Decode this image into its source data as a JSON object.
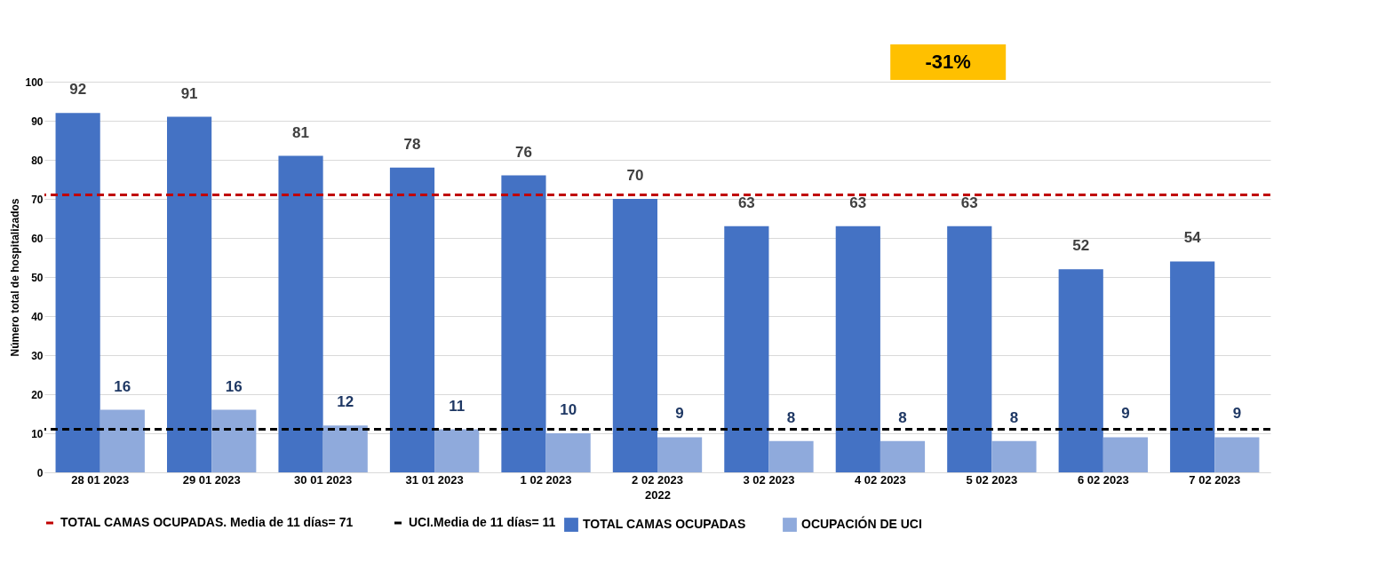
{
  "chart_data": {
    "type": "bar",
    "xlabel": "2022",
    "ylabel": "Número total de hospitalizados",
    "categories": [
      "28 01 2023",
      "29 01 2023",
      "30 01 2023",
      "31 01 2023",
      "1 02 2023",
      "2 02 2023",
      "3 02 2023",
      "4 02 2023",
      "5 02 2023",
      "6 02 2023",
      "7 02 2023"
    ],
    "series": [
      {
        "name": "TOTAL CAMAS OCUPADAS",
        "color": "#4472c4",
        "values": [
          92,
          91,
          81,
          78,
          76,
          70,
          63,
          63,
          63,
          52,
          54
        ]
      },
      {
        "name": "OCUPACIÓN DE UCI",
        "color": "#8faadc",
        "values": [
          16,
          16,
          12,
          11,
          10,
          9,
          8,
          8,
          8,
          9,
          9
        ]
      }
    ],
    "ref_lines": [
      {
        "axis": "y",
        "value": 71,
        "label": "TOTAL CAMAS OCUPADAS. Media de 11 días= 71",
        "color": "#c00000",
        "line_style": "dashed"
      },
      {
        "axis": "y",
        "value": 11,
        "label": "UCI.Media de 11 días= 11",
        "color": "#000000",
        "line_style": "dashed"
      }
    ],
    "annotations": [
      "-31%"
    ],
    "ylim": [
      0,
      100
    ],
    "yticks": [
      0,
      10,
      20,
      30,
      40,
      50,
      60,
      70,
      80,
      90,
      100
    ],
    "grid": "y",
    "legend": "bottom",
    "data_labels": true
  }
}
